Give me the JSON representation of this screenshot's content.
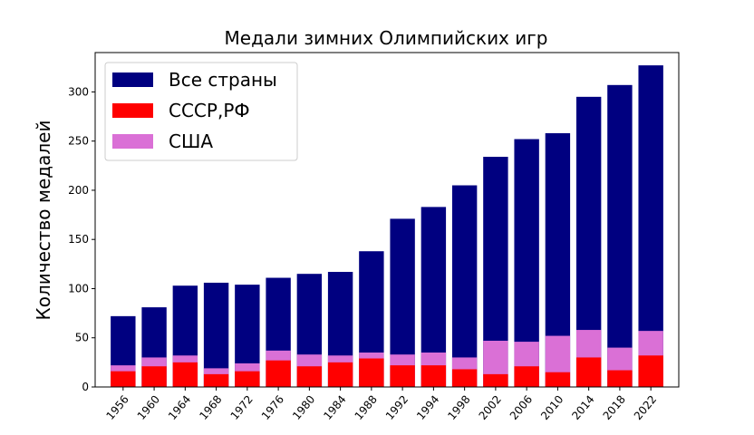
{
  "chart_data": {
    "type": "bar",
    "stacking": "overlay",
    "title": "Медали зимних Олимпийских игр",
    "xlabel": "",
    "ylabel": "Количество медалей",
    "ylim": [
      0,
      340
    ],
    "yticks": [
      0,
      50,
      100,
      150,
      200,
      250,
      300
    ],
    "grid": false,
    "legend_position": "top-left",
    "categories": [
      "1956",
      "1960",
      "1964",
      "1968",
      "1972",
      "1976",
      "1980",
      "1984",
      "1988",
      "1992",
      "1994",
      "1998",
      "2002",
      "2006",
      "2010",
      "2014",
      "2018",
      "2022"
    ],
    "series": [
      {
        "name": "Все страны",
        "color": "#000080",
        "values": [
          72,
          81,
          103,
          106,
          104,
          111,
          115,
          117,
          138,
          171,
          183,
          205,
          234,
          252,
          258,
          295,
          307,
          327
        ]
      },
      {
        "name": "США",
        "color": "#da70d6",
        "values": [
          22,
          30,
          32,
          19,
          24,
          37,
          33,
          32,
          35,
          33,
          35,
          30,
          47,
          46,
          52,
          58,
          40,
          57
        ]
      },
      {
        "name": "СССР,РФ",
        "color": "#ff0000",
        "values": [
          16,
          21,
          25,
          13,
          16,
          27,
          21,
          25,
          29,
          22,
          22,
          18,
          13,
          21,
          15,
          30,
          17,
          32
        ]
      }
    ],
    "legend_order": [
      "Все страны",
      "СССР,РФ",
      "США"
    ]
  }
}
